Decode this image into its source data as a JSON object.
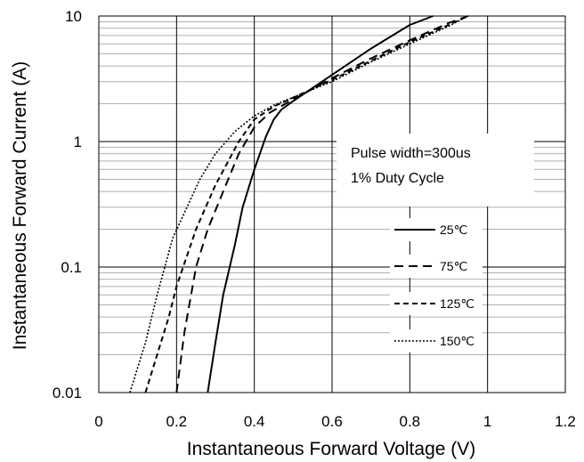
{
  "chart_data": {
    "type": "line",
    "title": "",
    "xlabel": "Instantaneous Forward Voltage (V)",
    "ylabel": "Instantaneous Forward Current (A)",
    "xlim": [
      0,
      1.2
    ],
    "ylim": [
      0.01,
      10
    ],
    "y_scale": "log",
    "grid": true,
    "x_ticks": [
      "0",
      "0.2",
      "0.4",
      "0.6",
      "0.8",
      "1",
      "1.2"
    ],
    "y_ticks": [
      "0.01",
      "0.1",
      "1",
      "10"
    ],
    "annotations": [
      "Pulse width=300us",
      "1% Duty Cycle"
    ],
    "legend_position": "center-right",
    "series": [
      {
        "name": "25℃",
        "dash": "solid",
        "x": [
          0.28,
          0.3,
          0.32,
          0.35,
          0.37,
          0.4,
          0.43,
          0.45,
          0.47,
          0.5,
          0.6,
          0.7,
          0.8,
          0.86
        ],
        "y": [
          0.01,
          0.025,
          0.06,
          0.15,
          0.3,
          0.6,
          1.1,
          1.5,
          1.8,
          2.1,
          3.4,
          5.5,
          8.5,
          10
        ]
      },
      {
        "name": "75℃",
        "dash": "long-dash",
        "x": [
          0.2,
          0.22,
          0.25,
          0.28,
          0.32,
          0.36,
          0.4,
          0.44,
          0.48,
          0.6,
          0.7,
          0.8,
          0.9,
          0.95
        ],
        "y": [
          0.01,
          0.03,
          0.1,
          0.2,
          0.4,
          0.8,
          1.3,
          1.7,
          2.0,
          3.2,
          4.6,
          6.4,
          8.8,
          10
        ]
      },
      {
        "name": "125℃",
        "dash": "short-dash",
        "x": [
          0.12,
          0.15,
          0.18,
          0.2,
          0.25,
          0.3,
          0.36,
          0.4,
          0.45,
          0.6,
          0.7,
          0.8,
          0.9,
          0.95
        ],
        "y": [
          0.01,
          0.02,
          0.04,
          0.07,
          0.2,
          0.45,
          1.0,
          1.5,
          1.9,
          3.1,
          4.4,
          6.2,
          8.5,
          10
        ]
      },
      {
        "name": "150℃",
        "dash": "dotted",
        "x": [
          0.08,
          0.12,
          0.15,
          0.19,
          0.22,
          0.26,
          0.3,
          0.35,
          0.4,
          0.45,
          0.6,
          0.7,
          0.8,
          0.9,
          0.95
        ],
        "y": [
          0.01,
          0.025,
          0.06,
          0.17,
          0.27,
          0.5,
          0.8,
          1.2,
          1.6,
          1.95,
          3.0,
          4.3,
          6.0,
          8.3,
          10
        ]
      }
    ]
  }
}
